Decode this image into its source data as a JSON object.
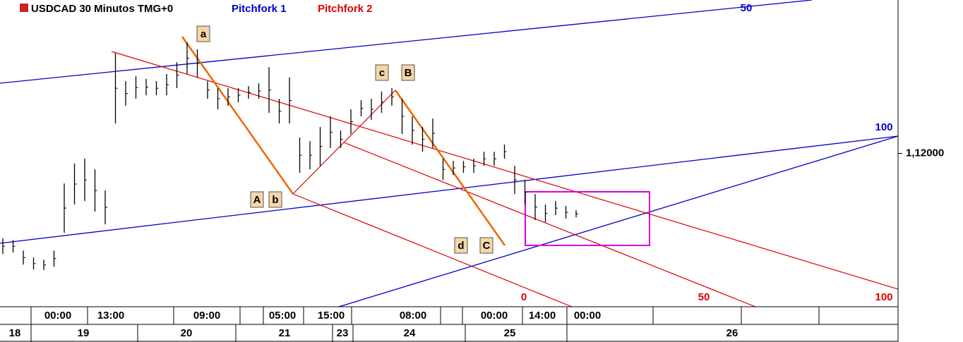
{
  "chart_data": {
    "type": "range_bar",
    "title": "USDCAD 30 Minutos TMG+0",
    "color": "#000000",
    "legend": [
      {
        "name": "Pitchfork 1",
        "color": "#0000cc"
      },
      {
        "name": "Pitchfork 2",
        "color": "#dd0000"
      }
    ],
    "ylim": [
      1.1125,
      1.1275
    ],
    "yticks": [
      {
        "value": 1.12,
        "label": "1,12000"
      }
    ],
    "high": [
      1.11584,
      1.11577,
      1.11525,
      1.11491,
      1.1148,
      1.11525,
      1.11853,
      1.1195,
      1.11974,
      1.11922,
      1.11819,
      1.12491,
      1.12353,
      1.12377,
      1.12364,
      1.12353,
      1.12388,
      1.12446,
      1.12543,
      1.12509,
      1.12353,
      1.12319,
      1.12319,
      1.12319,
      1.12329,
      1.12343,
      1.12422,
      1.12267,
      1.12371,
      1.12077,
      1.1206,
      1.12129,
      1.12181,
      1.12112,
      1.12215,
      1.1226,
      1.12267,
      1.12302,
      1.12319,
      1.12267,
      1.12181,
      1.12129,
      1.1217,
      1.11974,
      1.11963,
      1.11963,
      1.11974,
      1.12008,
      1.12008,
      1.12043,
      1.11939,
      1.1187,
      1.11801,
      1.1175,
      1.11767,
      1.11743,
      1.11722
    ],
    "low": [
      1.11508,
      1.11515,
      1.11456,
      1.11432,
      1.11429,
      1.11446,
      1.11612,
      1.1175,
      1.11767,
      1.11715,
      1.11653,
      1.12146,
      1.12233,
      1.12267,
      1.12284,
      1.12284,
      1.12284,
      1.12319,
      1.12388,
      1.12371,
      1.12267,
      1.12215,
      1.12233,
      1.1225,
      1.12267,
      1.12267,
      1.12198,
      1.12146,
      1.12146,
      1.11905,
      1.11922,
      1.11939,
      1.12026,
      1.12026,
      1.12095,
      1.12181,
      1.12164,
      1.12198,
      1.12233,
      1.12095,
      1.12043,
      1.12008,
      1.12026,
      1.1187,
      1.11894,
      1.11905,
      1.11905,
      1.11939,
      1.11939,
      1.11974,
      1.11801,
      1.1175,
      1.11674,
      1.11663,
      1.11698,
      1.11681,
      1.11687
    ],
    "pitchfork_1_levels": [
      "50",
      "100"
    ],
    "pitchfork_2_levels": [
      "0",
      "50",
      "100"
    ],
    "wave_labels": [
      "a",
      "A",
      "b",
      "c",
      "B",
      "d",
      "C"
    ],
    "x_time_labels": [
      "00:00",
      "13:00",
      "09:00",
      "05:00",
      "15:00",
      "08:00",
      "00:00",
      "14:00",
      "00:00"
    ],
    "x_date_labels": [
      "18",
      "19",
      "20",
      "21",
      "23",
      "24",
      "25",
      "26"
    ]
  }
}
